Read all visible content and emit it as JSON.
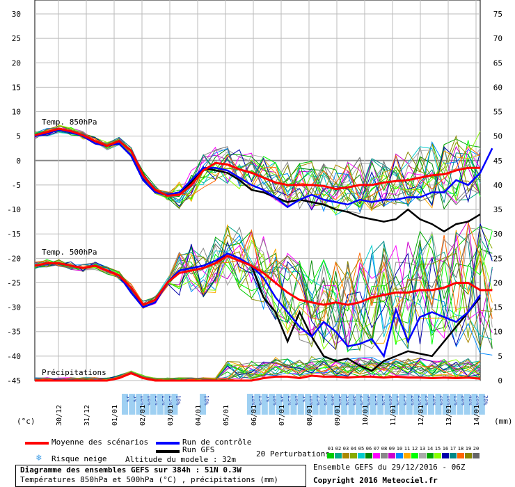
{
  "chart_data": {
    "type": "line",
    "title": "Diagramme des ensembles GEFS sur 384h : 51N 0.3W",
    "subtitle": "Températures 850hPa et 500hPa (°C) , précipitations (mm)",
    "left_axis_unit": "(°c)",
    "right_axis_unit": "(mm)",
    "left_ticks": [
      30,
      25,
      20,
      15,
      10,
      5,
      0,
      -5,
      -10,
      -15,
      -20,
      -25,
      -30,
      -35,
      -40,
      -45
    ],
    "right_ticks": [
      75,
      70,
      65,
      60,
      55,
      50,
      45,
      40,
      35,
      30,
      25,
      20,
      15,
      10,
      5,
      0
    ],
    "ylim": [
      -45,
      30
    ],
    "dates": [
      "30/12",
      "31/12",
      "01/01",
      "02/01",
      "03/01",
      "04/01",
      "05/01",
      "06/01",
      "07/01",
      "08/01",
      "09/01",
      "10/01",
      "11/01",
      "12/01",
      "13/01",
      "14/01"
    ],
    "panel_labels": {
      "t850": "Temp. 850hPa",
      "t500": "Temp. 500hPa",
      "precip": "Précipitations"
    },
    "snow_risk": [
      "5%",
      "5%",
      "10%",
      "10%",
      "15%",
      "15%",
      "15%",
      "10%",
      "10%",
      "10%",
      "15%",
      "5%",
      "10%",
      "5%",
      "15%",
      "10%",
      "5%",
      "10%",
      "25%",
      "35%",
      "30%",
      "30%",
      "35%",
      "30%",
      "25%",
      "30%",
      "15%",
      "15%",
      "20%",
      "15%",
      "25%",
      "20%",
      "25%",
      "25%",
      "20%",
      "20%",
      "10%",
      "15%",
      "20%",
      "40%",
      "20%",
      "20%",
      "25%",
      "25%",
      "25%",
      "10%",
      "15%",
      "20%",
      "15%",
      "20%",
      "10%",
      "5%",
      "15%",
      "20%",
      "15%",
      "5%",
      "5%",
      "20%"
    ],
    "t850": {
      "mean": [
        5.2,
        5.8,
        6.5,
        6.0,
        5.2,
        4.0,
        3.0,
        4.0,
        2.0,
        -3.0,
        -6.0,
        -7.2,
        -7.0,
        -5.0,
        -2.0,
        -0.5,
        -0.8,
        -1.8,
        -2.5,
        -3.5,
        -4.5,
        -5.0,
        -5.0,
        -5.0,
        -5.2,
        -5.8,
        -5.5,
        -5.0,
        -5.0,
        -4.5,
        -4.2,
        -4.0,
        -3.5,
        -3.0,
        -2.8,
        -2.0,
        -1.5,
        -1.5
      ],
      "control": [
        5.0,
        5.5,
        6.3,
        5.8,
        5.0,
        3.5,
        3.0,
        3.5,
        1.0,
        -4.0,
        -6.5,
        -7.0,
        -6.5,
        -4.0,
        -1.5,
        -1.5,
        -2.0,
        -3.5,
        -5.0,
        -6.0,
        -7.5,
        -9.5,
        -8.0,
        -7.0,
        -8.0,
        -8.5,
        -9.0,
        -8.0,
        -8.5,
        -8.0,
        -8.0,
        -7.5,
        -7.5,
        -6.5,
        -6.5,
        -4.0,
        -5.0,
        -2.5,
        2.5
      ],
      "gfs": [
        5.0,
        5.5,
        6.3,
        5.8,
        5.0,
        3.5,
        3.0,
        3.5,
        1.0,
        -4.0,
        -6.5,
        -7.0,
        -6.5,
        -4.5,
        -1.5,
        -2.0,
        -2.5,
        -4.0,
        -6.0,
        -6.5,
        -7.5,
        -8.5,
        -8.0,
        -8.5,
        -9.0,
        -10.0,
        -10.5,
        -11.5,
        -12.0,
        -12.5,
        -12.0,
        -10.0,
        -12.0,
        -13.0,
        -14.5,
        -13.0,
        -12.5,
        -11.0
      ]
    },
    "t500": {
      "mean": [
        -21.5,
        -21.0,
        -21.0,
        -21.5,
        -22.0,
        -21.5,
        -22.5,
        -23.5,
        -26.0,
        -29.5,
        -28.5,
        -25.0,
        -23.0,
        -22.5,
        -22.0,
        -21.0,
        -19.5,
        -20.5,
        -21.5,
        -23.0,
        -25.0,
        -27.0,
        -28.5,
        -29.0,
        -29.5,
        -29.0,
        -29.5,
        -29.0,
        -28.0,
        -27.5,
        -27.0,
        -27.0,
        -26.5,
        -26.5,
        -26.0,
        -25.0,
        -25.0,
        -26.5,
        -26.5
      ],
      "control": [
        -21.5,
        -21.0,
        -21.0,
        -21.5,
        -22.0,
        -21.5,
        -22.5,
        -23.5,
        -27.0,
        -30.0,
        -29.0,
        -25.0,
        -22.5,
        -22.0,
        -21.5,
        -20.5,
        -19.0,
        -20.0,
        -21.5,
        -24.0,
        -28.0,
        -31.0,
        -34.0,
        -36.0,
        -33.0,
        -35.0,
        -38.0,
        -37.5,
        -36.5,
        -40.0,
        -30.5,
        -37.0,
        -32.0,
        -31.0,
        -32.0,
        -33.0,
        -31.0,
        -27.5
      ],
      "gfs": [
        -21.5,
        -21.0,
        -21.0,
        -21.5,
        -22.0,
        -21.5,
        -22.5,
        -23.5,
        -27.0,
        -30.0,
        -29.0,
        -25.0,
        -22.5,
        -22.0,
        -21.5,
        -20.5,
        -19.5,
        -20.5,
        -21.5,
        -28.0,
        -31.0,
        -37.0,
        -31.0,
        -36.0,
        -40.0,
        -41.0,
        -40.5,
        -42.0,
        -43.0,
        -41.0,
        -40.0,
        -39.0,
        -39.5,
        -40.0,
        -37.0,
        -34.0,
        -31.0,
        -28.0
      ]
    },
    "precip": {
      "mean": [
        0,
        0,
        0,
        0,
        0,
        0,
        0,
        0.5,
        1.5,
        0.5,
        0,
        0,
        0,
        0,
        0,
        0,
        0,
        0,
        0,
        0.5,
        0.8,
        0.8,
        0.5,
        1.0,
        0.8,
        0.8,
        0.6,
        0.8,
        0.8,
        0.6,
        0.8,
        0.6,
        0.6,
        0.5,
        0.6,
        0.5,
        0.6,
        0.4
      ]
    }
  },
  "legend": {
    "mean": "Moyenne des scénarios",
    "control": "Run de contrôle",
    "gfs": "Run GFS",
    "snow": "Risque neige",
    "altitude": "Altitude du modele : 32m",
    "perturbations": "20 Perturbations",
    "mean_color": "#ff0000",
    "control_color": "#0000ff",
    "gfs_color": "#000000"
  },
  "pert_labels": [
    "01",
    "02",
    "03",
    "04",
    "05",
    "06",
    "07",
    "08",
    "09",
    "10",
    "11",
    "12",
    "13",
    "14",
    "15",
    "16",
    "17",
    "18",
    "19",
    "20"
  ],
  "pert_colors": [
    "#00cc00",
    "#00aa88",
    "#aa8800",
    "#88aa00",
    "#00cccc",
    "#008800",
    "#ff00ff",
    "#888888",
    "#cc00cc",
    "#0088ff",
    "#ffaa00",
    "#00ff00",
    "#aaaaaa",
    "#00aa00",
    "#88ff00",
    "#0000aa",
    "#008888",
    "#ff6600",
    "#888800",
    "#666666"
  ],
  "footer": {
    "title": "Diagramme des ensembles GEFS sur 384h : 51N 0.3W",
    "subtitle": "Températures 850hPa et 500hPa (°C) , précipitations (mm)",
    "run_info": "Ensemble GEFS du 29/12/2016 - 06Z",
    "copyright": "Copyright 2016 Meteociel.fr"
  }
}
